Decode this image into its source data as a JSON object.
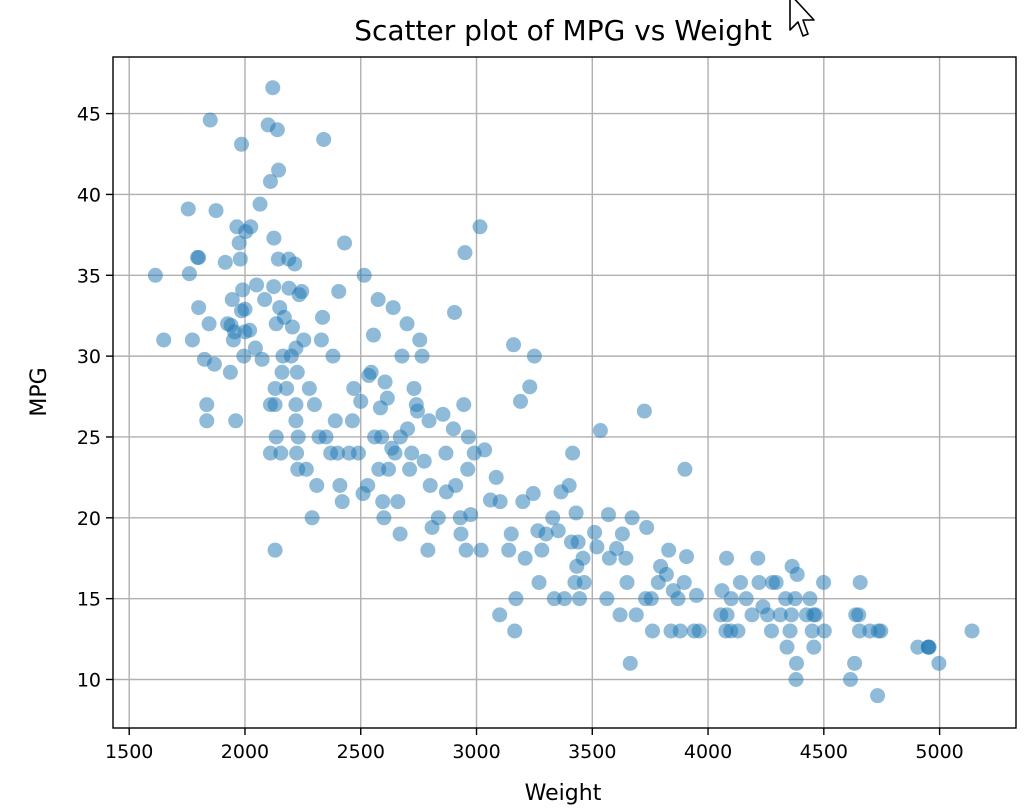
{
  "chart_data": {
    "type": "scatter",
    "title": "Scatter plot of MPG vs Weight",
    "xlabel": "Weight",
    "ylabel": "MPG",
    "xlim": [
      1430,
      5330
    ],
    "ylim": [
      7,
      48.5
    ],
    "xticks": [
      1500,
      2000,
      2500,
      3000,
      3500,
      4000,
      4500,
      5000
    ],
    "yticks": [
      10,
      15,
      20,
      25,
      30,
      35,
      40,
      45
    ],
    "grid": true,
    "color": "#1f77b4",
    "alpha": 0.5,
    "points": [
      [
        1613,
        35
      ],
      [
        1649,
        31
      ],
      [
        1755,
        39.1
      ],
      [
        1760,
        35.1
      ],
      [
        1773,
        31
      ],
      [
        1795,
        36.1
      ],
      [
        1800,
        36.1
      ],
      [
        1800,
        33
      ],
      [
        1825,
        29.8
      ],
      [
        1835,
        27
      ],
      [
        1835,
        26
      ],
      [
        1845,
        32
      ],
      [
        1850,
        44.6
      ],
      [
        1868,
        29.5
      ],
      [
        1875,
        39
      ],
      [
        1915,
        35.8
      ],
      [
        1925,
        32
      ],
      [
        1937,
        29
      ],
      [
        1940,
        31.9
      ],
      [
        1945,
        33.5
      ],
      [
        1950,
        31
      ],
      [
        1955,
        31.5
      ],
      [
        1960,
        26
      ],
      [
        1965,
        38
      ],
      [
        1975,
        37
      ],
      [
        1980,
        36
      ],
      [
        1985,
        32.8
      ],
      [
        1985,
        43.1
      ],
      [
        1990,
        34.1
      ],
      [
        1995,
        30
      ],
      [
        2000,
        31.5
      ],
      [
        2000,
        32.9
      ],
      [
        2003,
        37.7
      ],
      [
        2020,
        31.6
      ],
      [
        2025,
        38
      ],
      [
        2045,
        30.5
      ],
      [
        2050,
        34.4
      ],
      [
        2065,
        39.4
      ],
      [
        2074,
        29.8
      ],
      [
        2085,
        33.5
      ],
      [
        2100,
        44.3
      ],
      [
        2110,
        40.8
      ],
      [
        2110,
        27
      ],
      [
        2110,
        24
      ],
      [
        2120,
        46.6
      ],
      [
        2124,
        34.3
      ],
      [
        2125,
        37.3
      ],
      [
        2130,
        28
      ],
      [
        2130,
        27
      ],
      [
        2130,
        18
      ],
      [
        2135,
        25
      ],
      [
        2135,
        32
      ],
      [
        2140,
        44
      ],
      [
        2144,
        36
      ],
      [
        2145,
        41.5
      ],
      [
        2150,
        33
      ],
      [
        2155,
        24
      ],
      [
        2160,
        29
      ],
      [
        2164,
        30
      ],
      [
        2170,
        32.4
      ],
      [
        2180,
        28
      ],
      [
        2189,
        36
      ],
      [
        2190,
        34.2
      ],
      [
        2200,
        30
      ],
      [
        2205,
        31.8
      ],
      [
        2215,
        35.7
      ],
      [
        2220,
        30.5
      ],
      [
        2220,
        26
      ],
      [
        2220,
        27
      ],
      [
        2223,
        24
      ],
      [
        2226,
        29
      ],
      [
        2228,
        23
      ],
      [
        2230,
        25
      ],
      [
        2234,
        33.8
      ],
      [
        2245,
        34
      ],
      [
        2254,
        31
      ],
      [
        2265,
        23
      ],
      [
        2278,
        28
      ],
      [
        2290,
        20
      ],
      [
        2300,
        27
      ],
      [
        2310,
        22
      ],
      [
        2320,
        25
      ],
      [
        2330,
        31
      ],
      [
        2335,
        32.4
      ],
      [
        2340,
        43.4
      ],
      [
        2350,
        25
      ],
      [
        2370,
        24
      ],
      [
        2380,
        30
      ],
      [
        2390,
        26
      ],
      [
        2400,
        24
      ],
      [
        2405,
        34
      ],
      [
        2410,
        22
      ],
      [
        2420,
        21
      ],
      [
        2430,
        37
      ],
      [
        2450,
        24
      ],
      [
        2464,
        26
      ],
      [
        2470,
        28
      ],
      [
        2490,
        24
      ],
      [
        2500,
        27.2
      ],
      [
        2510,
        21.5
      ],
      [
        2515,
        35
      ],
      [
        2530,
        22
      ],
      [
        2535,
        28.8
      ],
      [
        2545,
        29
      ],
      [
        2555,
        31.3
      ],
      [
        2560,
        25
      ],
      [
        2575,
        33.5
      ],
      [
        2578,
        23
      ],
      [
        2585,
        26.8
      ],
      [
        2590,
        25
      ],
      [
        2595,
        21
      ],
      [
        2600,
        20
      ],
      [
        2605,
        28.4
      ],
      [
        2615,
        27.4
      ],
      [
        2620,
        23
      ],
      [
        2634,
        24.3
      ],
      [
        2640,
        33
      ],
      [
        2648,
        24
      ],
      [
        2660,
        21
      ],
      [
        2670,
        19
      ],
      [
        2671,
        25
      ],
      [
        2678,
        30
      ],
      [
        2700,
        32
      ],
      [
        2702,
        25.5
      ],
      [
        2711,
        23
      ],
      [
        2720,
        24
      ],
      [
        2730,
        28
      ],
      [
        2740,
        27
      ],
      [
        2745,
        26.6
      ],
      [
        2755,
        31
      ],
      [
        2765,
        30
      ],
      [
        2774,
        23.5
      ],
      [
        2790,
        18
      ],
      [
        2795,
        26
      ],
      [
        2800,
        22
      ],
      [
        2808,
        19.4
      ],
      [
        2835,
        20
      ],
      [
        2855,
        26.4
      ],
      [
        2868,
        24
      ],
      [
        2870,
        21.6
      ],
      [
        2900,
        25.5
      ],
      [
        2905,
        32.7
      ],
      [
        2910,
        22
      ],
      [
        2930,
        20
      ],
      [
        2933,
        19
      ],
      [
        2945,
        27
      ],
      [
        2950,
        36.4
      ],
      [
        2955,
        18
      ],
      [
        2962,
        23
      ],
      [
        2965,
        25
      ],
      [
        2975,
        20.2
      ],
      [
        2990,
        24
      ],
      [
        3015,
        38
      ],
      [
        3020,
        18
      ],
      [
        3035,
        24.2
      ],
      [
        3060,
        21.1
      ],
      [
        3085,
        22.5
      ],
      [
        3100,
        14
      ],
      [
        3102,
        21
      ],
      [
        3139,
        18
      ],
      [
        3150,
        19
      ],
      [
        3160,
        30.7
      ],
      [
        3165,
        13
      ],
      [
        3170,
        15
      ],
      [
        3190,
        27.2
      ],
      [
        3200,
        21
      ],
      [
        3210,
        17.5
      ],
      [
        3230,
        28.1
      ],
      [
        3245,
        21.5
      ],
      [
        3250,
        30
      ],
      [
        3265,
        19.2
      ],
      [
        3270,
        16
      ],
      [
        3282,
        18
      ],
      [
        3300,
        19
      ],
      [
        3329,
        20
      ],
      [
        3336,
        15
      ],
      [
        3353,
        19.2
      ],
      [
        3365,
        21.6
      ],
      [
        3380,
        15
      ],
      [
        3400,
        22
      ],
      [
        3410,
        18.5
      ],
      [
        3415,
        24
      ],
      [
        3425,
        16
      ],
      [
        3430,
        20.3
      ],
      [
        3433,
        17
      ],
      [
        3439,
        18.5
      ],
      [
        3445,
        15
      ],
      [
        3460,
        17.5
      ],
      [
        3465,
        16
      ],
      [
        3510,
        19.1
      ],
      [
        3520,
        18.2
      ],
      [
        3535,
        25.4
      ],
      [
        3563,
        15
      ],
      [
        3570,
        20.2
      ],
      [
        3574,
        17.5
      ],
      [
        3605,
        18.1
      ],
      [
        3620,
        14
      ],
      [
        3630,
        19
      ],
      [
        3645,
        17.5
      ],
      [
        3650,
        16
      ],
      [
        3664,
        11
      ],
      [
        3672,
        20
      ],
      [
        3690,
        14
      ],
      [
        3725,
        26.6
      ],
      [
        3730,
        15
      ],
      [
        3735,
        19.4
      ],
      [
        3755,
        15
      ],
      [
        3760,
        13
      ],
      [
        3785,
        16
      ],
      [
        3795,
        17
      ],
      [
        3820,
        16.5
      ],
      [
        3830,
        18
      ],
      [
        3840,
        13
      ],
      [
        3850,
        15.5
      ],
      [
        3870,
        15
      ],
      [
        3880,
        13
      ],
      [
        3897,
        16
      ],
      [
        3900,
        23
      ],
      [
        3907,
        17.6
      ],
      [
        3940,
        13
      ],
      [
        3950,
        15.2
      ],
      [
        3962,
        13
      ],
      [
        4055,
        14
      ],
      [
        4060,
        15.5
      ],
      [
        4077,
        13
      ],
      [
        4080,
        17.5
      ],
      [
        4082,
        14
      ],
      [
        4098,
        13
      ],
      [
        4100,
        15
      ],
      [
        4129,
        13
      ],
      [
        4140,
        16
      ],
      [
        4165,
        15
      ],
      [
        4190,
        14
      ],
      [
        4215,
        17.5
      ],
      [
        4220,
        16
      ],
      [
        4237,
        14.5
      ],
      [
        4257,
        14
      ],
      [
        4274,
        13
      ],
      [
        4278,
        16
      ],
      [
        4294,
        16
      ],
      [
        4312,
        14
      ],
      [
        4335,
        15
      ],
      [
        4341,
        12
      ],
      [
        4354,
        13
      ],
      [
        4360,
        14
      ],
      [
        4363,
        17
      ],
      [
        4376,
        15
      ],
      [
        4380,
        10
      ],
      [
        4382,
        11
      ],
      [
        4385,
        16.5
      ],
      [
        4425,
        14
      ],
      [
        4440,
        15
      ],
      [
        4450,
        13
      ],
      [
        4456,
        14
      ],
      [
        4457,
        12
      ],
      [
        4464,
        14
      ],
      [
        4499,
        16
      ],
      [
        4502,
        13
      ],
      [
        4615,
        10
      ],
      [
        4633,
        11
      ],
      [
        4638,
        14
      ],
      [
        4651,
        14
      ],
      [
        4654,
        13
      ],
      [
        4657,
        16
      ],
      [
        4699,
        13
      ],
      [
        4732,
        9
      ],
      [
        4735,
        13
      ],
      [
        4746,
        13
      ],
      [
        4906,
        12
      ],
      [
        4951,
        12
      ],
      [
        4952,
        12
      ],
      [
        4955,
        12
      ],
      [
        4997,
        11
      ],
      [
        5140,
        13
      ]
    ]
  }
}
